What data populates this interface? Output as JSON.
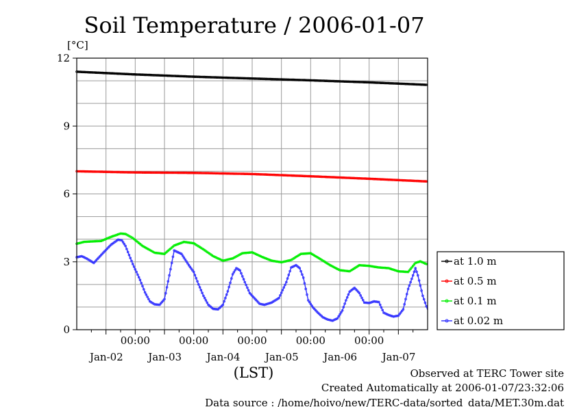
{
  "chart_data": {
    "type": "line",
    "title": "Soil Temperature / 2006-01-07",
    "ylabel": "[°C]",
    "xlabel": "(LST)",
    "ylim": [
      0,
      12
    ],
    "yticks": [
      0,
      3,
      6,
      9,
      12
    ],
    "xlim": [
      0,
      144
    ],
    "xticks": [
      {
        "x": 24,
        "time": "00:00",
        "date": "Jan-02"
      },
      {
        "x": 48,
        "time": "00:00",
        "date": "Jan-03"
      },
      {
        "x": 72,
        "time": "00:00",
        "date": "Jan-04"
      },
      {
        "x": 96,
        "time": "00:00",
        "date": "Jan-05"
      },
      {
        "x": 120,
        "time": "00:00",
        "date": "Jan-06"
      },
      {
        "x": 144,
        "time": "",
        "date": "Jan-07"
      }
    ],
    "grid": true,
    "legend_position": "right",
    "series": [
      {
        "name": "at 1.0 m",
        "color": "#000000",
        "x": [
          0,
          24,
          48,
          72,
          96,
          120,
          144
        ],
        "y": [
          11.4,
          11.28,
          11.18,
          11.1,
          11.02,
          10.93,
          10.82
        ]
      },
      {
        "name": "at 0.5 m",
        "color": "#ff0000",
        "x": [
          0,
          24,
          48,
          72,
          96,
          120,
          144
        ],
        "y": [
          7.0,
          6.95,
          6.93,
          6.88,
          6.78,
          6.67,
          6.55
        ]
      },
      {
        "name": "at 0.1 m",
        "color": "#00ee00",
        "x": [
          0,
          3,
          6,
          10,
          14,
          18,
          20,
          23,
          27,
          32,
          36,
          40,
          44,
          48,
          52,
          56,
          60,
          64,
          68,
          72,
          76,
          80,
          84,
          88,
          92,
          96,
          100,
          104,
          108,
          112,
          116,
          120,
          124,
          128,
          132,
          136,
          139,
          141,
          144
        ],
        "y": [
          3.8,
          3.88,
          3.9,
          3.92,
          4.1,
          4.25,
          4.23,
          4.05,
          3.7,
          3.4,
          3.35,
          3.72,
          3.88,
          3.82,
          3.55,
          3.25,
          3.05,
          3.15,
          3.38,
          3.42,
          3.22,
          3.05,
          2.98,
          3.08,
          3.35,
          3.38,
          3.12,
          2.85,
          2.63,
          2.58,
          2.85,
          2.82,
          2.75,
          2.72,
          2.58,
          2.55,
          2.95,
          3.02,
          2.88
        ]
      },
      {
        "name": "at 0.02 m",
        "color": "#3333ff",
        "x": [
          0,
          2,
          4,
          7,
          10,
          14,
          17,
          18.5,
          20,
          23,
          26,
          28,
          30,
          32,
          34,
          36,
          38,
          40,
          43,
          46,
          48,
          50,
          52,
          54,
          56,
          58,
          60,
          62,
          64,
          65.5,
          67,
          69,
          71,
          73,
          75,
          77,
          80,
          83,
          86,
          88,
          90,
          91.5,
          93,
          95,
          97,
          99,
          101,
          103,
          105,
          107,
          109,
          110.5,
          112,
          114,
          116,
          118,
          120,
          122,
          124,
          126,
          128,
          130,
          132,
          134,
          136,
          138,
          139,
          140,
          142,
          144
        ],
        "y": [
          3.2,
          3.25,
          3.15,
          2.95,
          3.3,
          3.75,
          3.98,
          3.95,
          3.7,
          2.9,
          2.2,
          1.65,
          1.25,
          1.12,
          1.1,
          1.35,
          2.4,
          3.5,
          3.35,
          2.85,
          2.55,
          2.0,
          1.5,
          1.1,
          0.92,
          0.9,
          1.1,
          1.7,
          2.45,
          2.72,
          2.62,
          2.1,
          1.62,
          1.38,
          1.15,
          1.1,
          1.2,
          1.4,
          2.1,
          2.75,
          2.85,
          2.72,
          2.3,
          1.3,
          0.98,
          0.75,
          0.55,
          0.45,
          0.4,
          0.5,
          0.85,
          1.3,
          1.68,
          1.85,
          1.62,
          1.2,
          1.18,
          1.25,
          1.22,
          0.75,
          0.65,
          0.58,
          0.62,
          0.9,
          1.8,
          2.4,
          2.72,
          2.4,
          1.5,
          0.88
        ]
      }
    ]
  },
  "footer": {
    "observed": "Observed at TERC Tower site",
    "created": "Created Automatically at 2006-01-07/23:32:06",
    "source": "Data source : /home/hoivo/new/TERC-data/sorted_data/MET.30m.dat"
  }
}
